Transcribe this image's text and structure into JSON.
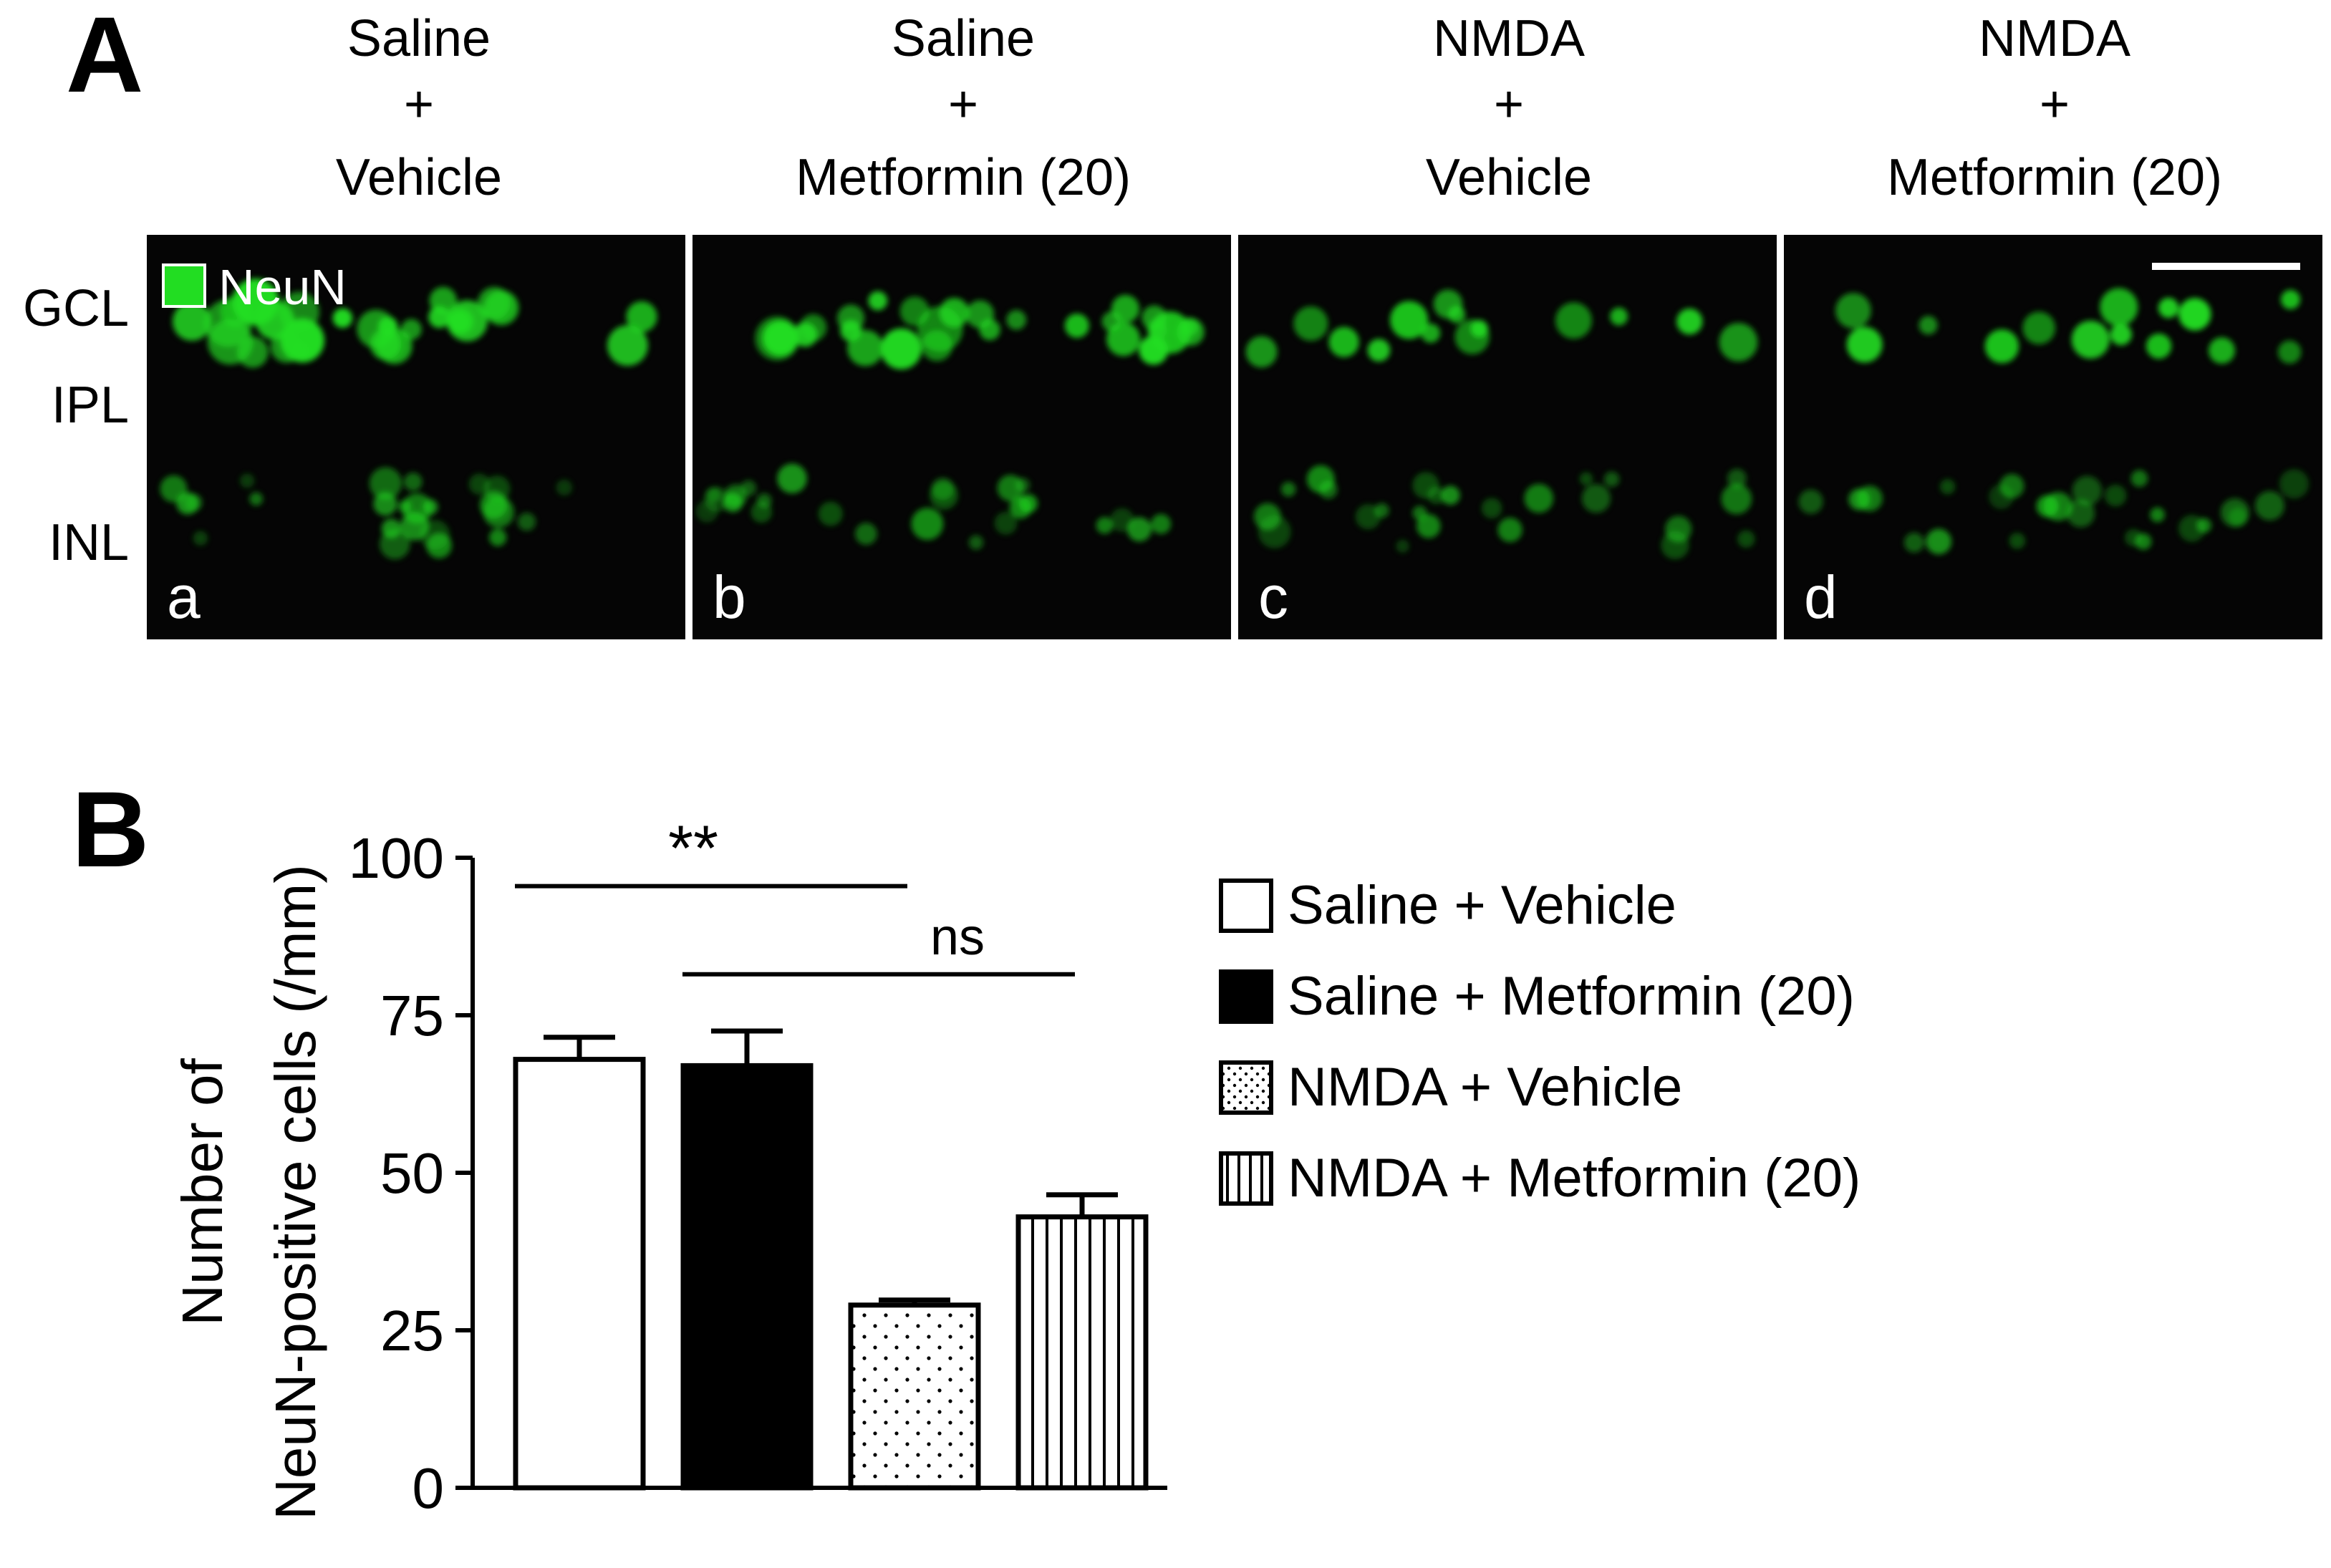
{
  "panel_a": {
    "letter": "A",
    "columns": [
      {
        "line1": "Saline",
        "line2": "+",
        "line3": "Vehicle",
        "panel_letter": "a"
      },
      {
        "line1": "Saline",
        "line2": "+",
        "line3": "Metformin (20)",
        "panel_letter": "b"
      },
      {
        "line1": "NMDA",
        "line2": "+",
        "line3": "Vehicle",
        "panel_letter": "c"
      },
      {
        "line1": "NMDA",
        "line2": "+",
        "line3": "Metformin (20)",
        "panel_letter": "d"
      }
    ],
    "row_labels": [
      "GCL",
      "IPL",
      "INL"
    ],
    "stain_legend": {
      "label": "NeuN",
      "color": "#22dd22"
    },
    "micrograph_background": "#050505"
  },
  "chart_data": {
    "letter": "B",
    "type": "bar",
    "categories": [
      "Saline + Vehicle",
      "Saline + Metformin (20)",
      "NMDA + Vehicle",
      "NMDA + Metformin (20)"
    ],
    "values": [
      68,
      67,
      29,
      43
    ],
    "errors": [
      3.5,
      5.5,
      0.8,
      3.5
    ],
    "fills": [
      "white",
      "black",
      "dotted",
      "vertical-stripes"
    ],
    "ylabel_line1": "Number of",
    "ylabel_line2": "NeuN-positive cells (/mm)",
    "ylim": [
      0,
      100
    ],
    "yticks": [
      0,
      25,
      50,
      75,
      100
    ],
    "legend_position": "right",
    "significance": [
      {
        "label": "**",
        "from": 0,
        "to": 2
      },
      {
        "label": "ns",
        "from": 1,
        "to": 3
      }
    ]
  }
}
